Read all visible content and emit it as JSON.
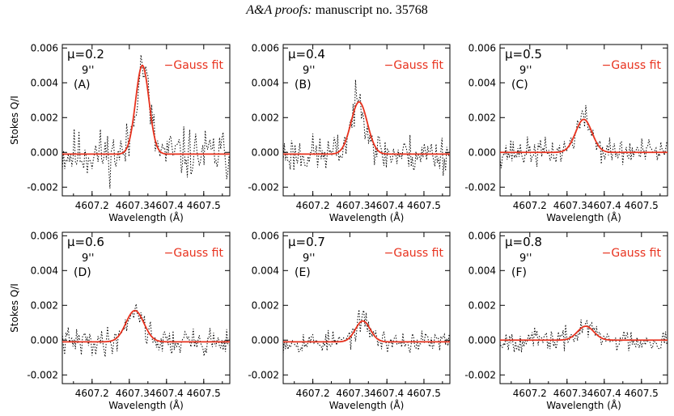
{
  "header": {
    "journal": "A&A proofs:",
    "manuscript": "manuscript no. 35768"
  },
  "colors": {
    "fit": "#e8321e",
    "observed": "#000000",
    "axis": "#000000"
  },
  "chart_data": [
    {
      "type": "line",
      "label": "(A)",
      "mu_label": "μ=0.2",
      "arcsec": "9''",
      "legend": "−Gauss fit",
      "xlabel": "Wavelength (Å)",
      "ylabel": "Stokes Q/I",
      "xticks": [
        "4607.2",
        "4607.3",
        "4607.4",
        "4607.5"
      ],
      "yticks": [
        "-0.002",
        "0.000",
        "0.002",
        "0.004",
        "0.006"
      ],
      "xlim": [
        4607.12,
        4607.57
      ],
      "ylim": [
        -0.0025,
        0.0062
      ],
      "fit": {
        "amplitude": 0.0051,
        "center": 4607.335,
        "sigma": 0.018,
        "offset": -0.0001
      },
      "observed": {
        "x_start": 4607.12,
        "x_step": 0.0032,
        "noise": 0.0009,
        "seed": 11
      }
    },
    {
      "type": "line",
      "label": "(B)",
      "mu_label": "μ=0.4",
      "arcsec": "9''",
      "legend": "−Gauss fit",
      "xlabel": "Wavelength (Å)",
      "ylabel": "",
      "xticks": [
        "4607.2",
        "4607.3",
        "4607.4",
        "4607.5"
      ],
      "yticks": [
        "-0.002",
        "0.000",
        "0.002",
        "0.004",
        "0.006"
      ],
      "xlim": [
        4607.12,
        4607.57
      ],
      "ylim": [
        -0.0025,
        0.0062
      ],
      "fit": {
        "amplitude": 0.003,
        "center": 4607.325,
        "sigma": 0.022,
        "offset": -0.0001
      },
      "observed": {
        "x_start": 4607.12,
        "x_step": 0.0032,
        "noise": 0.0007,
        "seed": 23
      }
    },
    {
      "type": "line",
      "label": "(C)",
      "mu_label": "μ=0.5",
      "arcsec": "9''",
      "legend": "−Gauss fit",
      "xlabel": "Wavelength (Å)",
      "ylabel": "",
      "xticks": [
        "4607.2",
        "4607.3",
        "4607.4",
        "4607.5"
      ],
      "yticks": [
        "-0.002",
        "0.000",
        "0.002",
        "0.004",
        "0.006"
      ],
      "xlim": [
        4607.12,
        4607.57
      ],
      "ylim": [
        -0.0025,
        0.0062
      ],
      "fit": {
        "amplitude": 0.0019,
        "center": 4607.345,
        "sigma": 0.022,
        "offset": 0.0
      },
      "observed": {
        "x_start": 4607.12,
        "x_step": 0.0032,
        "noise": 0.0005,
        "seed": 37
      }
    },
    {
      "type": "line",
      "label": "(D)",
      "mu_label": "μ=0.6",
      "arcsec": "9''",
      "legend": "−Gauss fit",
      "xlabel": "Wavelength (Å)",
      "ylabel": "Stokes Q/I",
      "xticks": [
        "4607.2",
        "4607.3",
        "4607.4",
        "4607.5"
      ],
      "yticks": [
        "-0.002",
        "0.000",
        "0.002",
        "0.004",
        "0.006"
      ],
      "xlim": [
        4607.12,
        4607.57
      ],
      "ylim": [
        -0.0025,
        0.0062
      ],
      "fit": {
        "amplitude": 0.0018,
        "center": 4607.315,
        "sigma": 0.024,
        "offset": -0.0001
      },
      "observed": {
        "x_start": 4607.12,
        "x_step": 0.0032,
        "noise": 0.0005,
        "seed": 41
      }
    },
    {
      "type": "line",
      "label": "(E)",
      "mu_label": "μ=0.7",
      "arcsec": "9''",
      "legend": "−Gauss fit",
      "xlabel": "Wavelength (Å)",
      "ylabel": "",
      "xticks": [
        "4607.2",
        "4607.3",
        "4607.4",
        "4607.5"
      ],
      "yticks": [
        "-0.002",
        "0.000",
        "0.002",
        "0.004",
        "0.006"
      ],
      "xlim": [
        4607.12,
        4607.57
      ],
      "ylim": [
        -0.0025,
        0.0062
      ],
      "fit": {
        "amplitude": 0.0012,
        "center": 4607.335,
        "sigma": 0.02,
        "offset": -0.0001
      },
      "observed": {
        "x_start": 4607.12,
        "x_step": 0.0032,
        "noise": 0.0004,
        "seed": 53
      }
    },
    {
      "type": "line",
      "label": "(F)",
      "mu_label": "μ=0.8",
      "arcsec": "9''",
      "legend": "−Gauss fit",
      "xlabel": "Wavelength (Å)",
      "ylabel": "",
      "xticks": [
        "4607.2",
        "4607.3",
        "4607.4",
        "4607.5"
      ],
      "yticks": [
        "-0.002",
        "0.000",
        "0.002",
        "0.004",
        "0.006"
      ],
      "xlim": [
        4607.12,
        4607.57
      ],
      "ylim": [
        -0.0025,
        0.0062
      ],
      "fit": {
        "amplitude": 0.0008,
        "center": 4607.35,
        "sigma": 0.022,
        "offset": 0.0
      },
      "observed": {
        "x_start": 4607.12,
        "x_step": 0.0032,
        "noise": 0.0004,
        "seed": 67
      }
    }
  ]
}
